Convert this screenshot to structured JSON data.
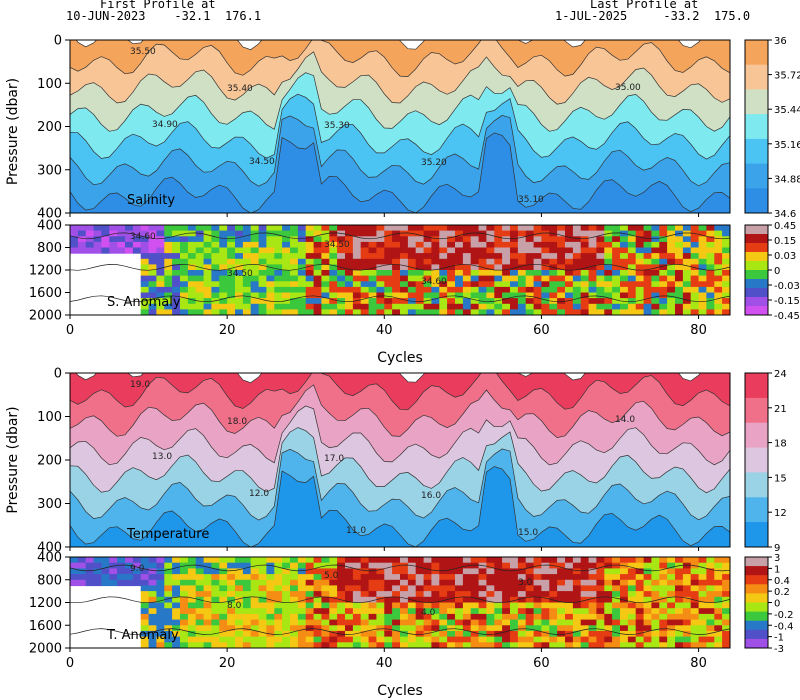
{
  "header": {
    "first_label": "First Profile at",
    "first_info": "10-JUN-2023    -32.1  176.1",
    "last_label": "Last Profile at",
    "last_info": "1-JUL-2025     -33.2  175.0"
  },
  "chart_data": [
    {
      "type": "heatmap",
      "panel_label": "Salinity",
      "ylabel": "Pressure (dbar)",
      "xlim": [
        0,
        84
      ],
      "ylim": [
        400,
        0
      ],
      "yticks": [
        "0",
        "100",
        "200",
        "300",
        "400"
      ],
      "colorbar_ticks": [
        "36",
        "35.72",
        "35.44",
        "35.16",
        "34.88",
        "34.6"
      ],
      "colorbar_colors": [
        "#f5a45c",
        "#f8c596",
        "#cfe0c4",
        "#7fe9f0",
        "#4bc3f3",
        "#3ba3ea",
        "#2e8ee5"
      ],
      "contour_labels": [
        "35.50",
        "35.40",
        "35.30",
        "35.20",
        "35.10",
        "35.00",
        "34.90",
        "34.50"
      ]
    },
    {
      "type": "heatmap",
      "panel_label": "S. Anomaly",
      "xlim": [
        0,
        84
      ],
      "ylim": [
        2000,
        400
      ],
      "yticks": [
        "400",
        "800",
        "1200",
        "1600",
        "2000"
      ],
      "colorbar_ticks": [
        "0.45",
        "0.15",
        "0.03",
        "0",
        "-0.03",
        "-0.15",
        "-0.45"
      ],
      "colorbar_colors": [
        "#c8a0a8",
        "#b01414",
        "#e63c14",
        "#f5c814",
        "#a8e614",
        "#3cc83c",
        "#2878c8",
        "#5050c8",
        "#a050e6",
        "#d050f0"
      ],
      "contour_labels": [
        "34.60",
        "34.50",
        "34.50",
        "34.60"
      ]
    },
    {
      "type": "heatmap",
      "panel_label": "Temperature",
      "ylabel": "Pressure (dbar)",
      "xlim": [
        0,
        84
      ],
      "ylim": [
        400,
        0
      ],
      "yticks": [
        "0",
        "100",
        "200",
        "300",
        "400"
      ],
      "colorbar_ticks": [
        "24",
        "21",
        "18",
        "15",
        "12",
        "9"
      ],
      "colorbar_colors": [
        "#ea3c5c",
        "#f0708a",
        "#e9a3c4",
        "#dcc6e0",
        "#9ad2e6",
        "#4fb4ec",
        "#1e96ea"
      ],
      "contour_labels": [
        "19.0",
        "18.0",
        "17.0",
        "16.0",
        "15.0",
        "14.0",
        "13.0",
        "12.0",
        "11.0"
      ]
    },
    {
      "type": "heatmap",
      "panel_label": "T. Anomaly",
      "xlabel": "Cycles",
      "xlim": [
        0,
        84
      ],
      "ylim": [
        2000,
        400
      ],
      "yticks": [
        "400",
        "800",
        "1200",
        "1600",
        "2000"
      ],
      "colorbar_ticks": [
        "3",
        "1",
        "0.4",
        "0.2",
        "0",
        "-0.2",
        "-0.4",
        "-1",
        "-3"
      ],
      "colorbar_colors": [
        "#c8a0a8",
        "#b01414",
        "#e63c14",
        "#f58c14",
        "#f5c814",
        "#a8e614",
        "#3cc83c",
        "#2878c8",
        "#5050c8",
        "#a050e6"
      ],
      "contour_labels": [
        "9.0",
        "8.0",
        "5.0",
        "4.0",
        "3.0"
      ]
    }
  ],
  "x_axis": {
    "ticks": [
      "0",
      "20",
      "40",
      "60",
      "80"
    ],
    "label": "Cycles"
  }
}
